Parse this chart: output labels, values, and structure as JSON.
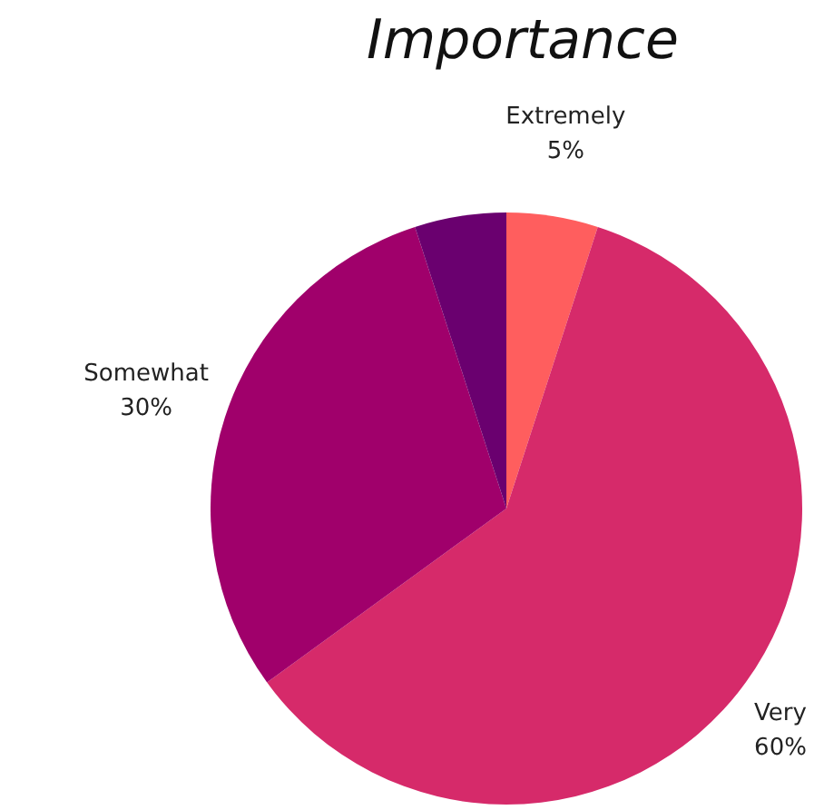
{
  "chart_data": {
    "type": "pie",
    "title": "Importance",
    "categories": [
      "Extremely",
      "Very",
      "Somewhat",
      null
    ],
    "values": [
      5,
      60,
      30,
      5
    ],
    "value_labels": [
      "5%",
      "60%",
      "30%",
      null
    ],
    "colors": [
      "#ff5e5e",
      "#d62a6a",
      "#a0006b",
      "#6a006f"
    ]
  }
}
